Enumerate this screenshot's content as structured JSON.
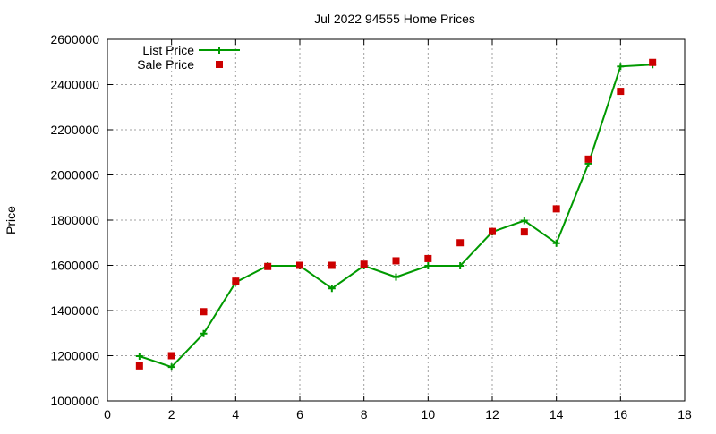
{
  "chart_data": {
    "type": "line",
    "title": "Jul 2022 94555 Home Prices",
    "xlabel": "",
    "ylabel": "Price",
    "xlim": [
      0,
      18
    ],
    "ylim": [
      1000000,
      2600000
    ],
    "x_ticks": [
      0,
      2,
      4,
      6,
      8,
      10,
      12,
      14,
      16,
      18
    ],
    "y_ticks": [
      1000000,
      1200000,
      1400000,
      1600000,
      1800000,
      2000000,
      2200000,
      2400000,
      2600000
    ],
    "grid": true,
    "legend_position": "top-left",
    "series": [
      {
        "name": "List Price",
        "style": "line-with-plus-markers",
        "color": "#009900",
        "x": [
          1,
          2,
          3,
          4,
          5,
          6,
          7,
          8,
          9,
          10,
          11,
          12,
          13,
          14,
          15,
          16,
          17
        ],
        "values": [
          1198000,
          1150000,
          1298000,
          1525000,
          1598000,
          1598000,
          1498000,
          1598000,
          1548000,
          1598000,
          1598000,
          1748000,
          1798000,
          1698000,
          2050000,
          2480000,
          2488000
        ]
      },
      {
        "name": "Sale Price",
        "style": "square-markers",
        "color": "#cc0000",
        "x": [
          1,
          2,
          3,
          4,
          5,
          6,
          7,
          8,
          9,
          10,
          11,
          12,
          13,
          14,
          15,
          16,
          17
        ],
        "values": [
          1155000,
          1200000,
          1395000,
          1530000,
          1595000,
          1600000,
          1600000,
          1605000,
          1620000,
          1630000,
          1700000,
          1750000,
          1748000,
          1850000,
          2070000,
          2370000,
          2498000
        ]
      }
    ]
  }
}
